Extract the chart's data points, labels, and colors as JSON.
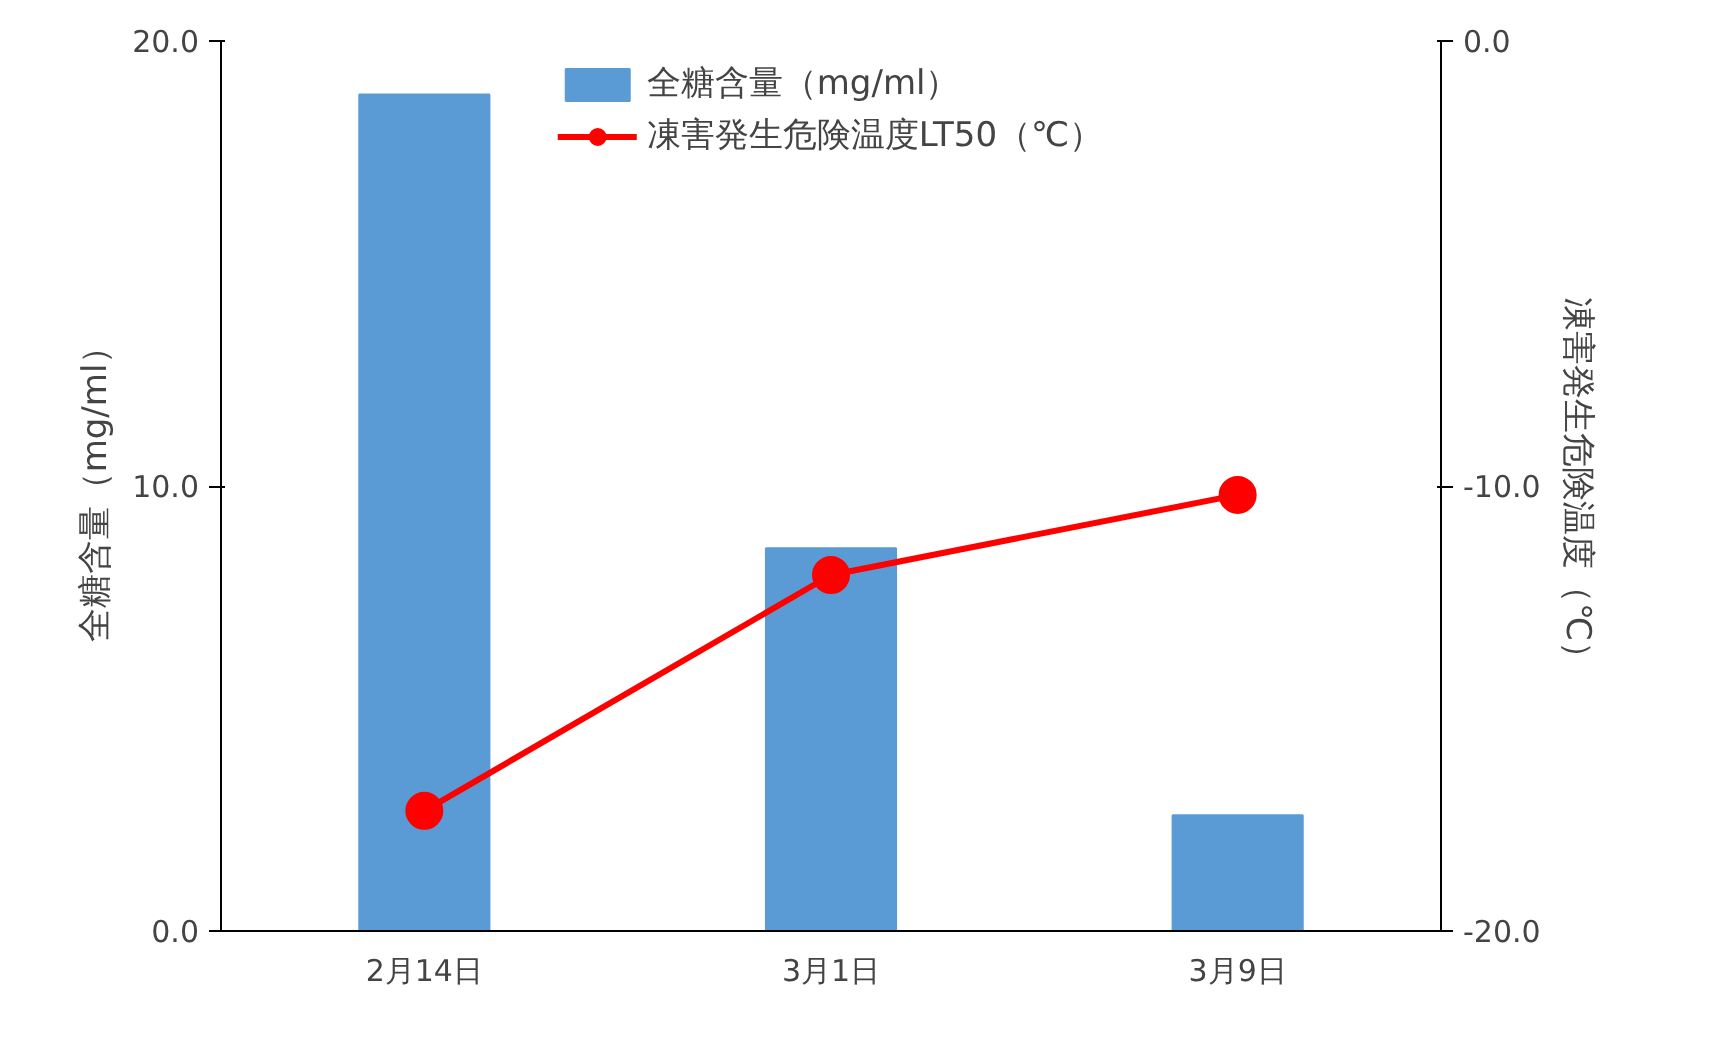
{
  "chart_data": {
    "type": "bar",
    "categories": [
      "2月14日",
      "3月1日",
      "3月9日"
    ],
    "ylabel": "全糖含量（mg/ml）",
    "y2label": "凍害発生危険温度（℃）",
    "ylim": [
      0,
      20
    ],
    "yticks": [
      {
        "value": 0,
        "label": "0.0"
      },
      {
        "value": 10,
        "label": "10.0"
      },
      {
        "value": 20,
        "label": "20.0"
      }
    ],
    "y2lim": [
      -20,
      0
    ],
    "y2ticks": [
      {
        "value": -20,
        "label": "-20.0"
      },
      {
        "value": -10,
        "label": "-10.0"
      },
      {
        "value": 0,
        "label": "0.0"
      }
    ],
    "series": [
      {
        "name": "全糖含量（mg/ml）",
        "color": "#5b9bd5",
        "values": [
          18.8,
          8.6,
          2.6
        ]
      },
      {
        "name": "凍害発生危険温度LT50（℃）",
        "type": "line",
        "axis": "y2",
        "color": "#ff0000",
        "marker": "circle",
        "values": [
          -17.3,
          -12.0,
          -10.2
        ]
      }
    ],
    "legend": "top",
    "grid": false
  }
}
